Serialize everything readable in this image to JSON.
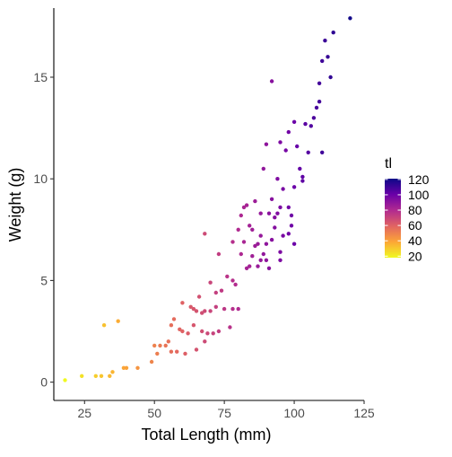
{
  "chart_data": {
    "type": "scatter",
    "xlabel": "Total Length (mm)",
    "ylabel": "Weight (g)",
    "xlim": [
      14,
      125
    ],
    "ylim": [
      -0.9,
      18.4
    ],
    "xticks": [
      25,
      50,
      75,
      100,
      125
    ],
    "yticks": [
      0,
      5,
      10,
      15
    ],
    "grid": false,
    "legend": {
      "title": "tl",
      "position": "right",
      "range": [
        18,
        121
      ],
      "ticks": [
        20,
        40,
        60,
        80,
        100,
        120
      ],
      "colors": [
        "#F0F921",
        "#FCA636",
        "#E16462",
        "#B12A90",
        "#6A00A8",
        "#0D0887"
      ]
    },
    "points": [
      [
        18,
        0.1
      ],
      [
        24,
        0.3
      ],
      [
        29,
        0.3
      ],
      [
        31,
        0.3
      ],
      [
        32,
        2.8
      ],
      [
        34,
        0.3
      ],
      [
        35,
        0.5
      ],
      [
        37,
        3.0
      ],
      [
        39,
        0.7
      ],
      [
        40,
        0.7
      ],
      [
        44,
        0.7
      ],
      [
        49,
        1.0
      ],
      [
        50,
        1.8
      ],
      [
        51,
        1.4
      ],
      [
        52,
        1.8
      ],
      [
        54,
        1.8
      ],
      [
        55,
        2.0
      ],
      [
        56,
        1.5
      ],
      [
        56,
        2.8
      ],
      [
        57,
        3.1
      ],
      [
        58,
        1.5
      ],
      [
        59,
        2.6
      ],
      [
        60,
        2.5
      ],
      [
        60,
        3.9
      ],
      [
        61,
        1.4
      ],
      [
        62,
        2.4
      ],
      [
        63,
        3.7
      ],
      [
        64,
        2.8
      ],
      [
        64,
        3.6
      ],
      [
        65,
        1.6
      ],
      [
        65,
        3.5
      ],
      [
        66,
        4.2
      ],
      [
        67,
        2.5
      ],
      [
        67,
        3.4
      ],
      [
        68,
        2.0
      ],
      [
        68,
        3.5
      ],
      [
        68,
        7.3
      ],
      [
        69,
        2.4
      ],
      [
        70,
        3.5
      ],
      [
        70,
        4.9
      ],
      [
        71,
        2.4
      ],
      [
        72,
        3.7
      ],
      [
        72,
        4.4
      ],
      [
        73,
        2.5
      ],
      [
        73,
        6.3
      ],
      [
        74,
        4.5
      ],
      [
        75,
        3.6
      ],
      [
        76,
        5.2
      ],
      [
        77,
        2.7
      ],
      [
        78,
        3.6
      ],
      [
        78,
        5.0
      ],
      [
        78,
        6.9
      ],
      [
        79,
        4.8
      ],
      [
        80,
        3.6
      ],
      [
        80,
        7.5
      ],
      [
        81,
        8.2
      ],
      [
        81,
        6.3
      ],
      [
        82,
        8.6
      ],
      [
        82,
        6.9
      ],
      [
        83,
        8.7
      ],
      [
        83,
        5.6
      ],
      [
        84,
        7.7
      ],
      [
        84,
        5.7
      ],
      [
        85,
        6.2
      ],
      [
        85,
        7.5
      ],
      [
        86,
        8.9
      ],
      [
        86,
        6.7
      ],
      [
        87,
        6.8
      ],
      [
        87,
        5.7
      ],
      [
        88,
        7.2
      ],
      [
        88,
        8.3
      ],
      [
        88,
        6.0
      ],
      [
        89,
        10.5
      ],
      [
        89,
        6.3
      ],
      [
        90,
        6.8
      ],
      [
        90,
        11.7
      ],
      [
        90,
        6.0
      ],
      [
        91,
        5.6
      ],
      [
        91,
        8.3
      ],
      [
        92,
        9.0
      ],
      [
        92,
        7.0
      ],
      [
        93,
        7.6
      ],
      [
        92,
        14.8
      ],
      [
        93,
        8.1
      ],
      [
        94,
        10.0
      ],
      [
        94,
        8.3
      ],
      [
        95,
        11.8
      ],
      [
        95,
        6.0
      ],
      [
        95,
        8.6
      ],
      [
        95,
        6.4
      ],
      [
        96,
        9.5
      ],
      [
        96,
        7.2
      ],
      [
        97,
        11.4
      ],
      [
        98,
        7.3
      ],
      [
        98,
        8.6
      ],
      [
        98,
        12.3
      ],
      [
        99,
        7.7
      ],
      [
        99,
        8.2
      ],
      [
        100,
        9.6
      ],
      [
        100,
        12.8
      ],
      [
        100,
        6.8
      ],
      [
        101,
        11.6
      ],
      [
        102,
        10.5
      ],
      [
        103,
        10.1
      ],
      [
        103,
        9.9
      ],
      [
        104,
        12.7
      ],
      [
        105,
        11.3
      ],
      [
        106,
        12.6
      ],
      [
        107,
        13.0
      ],
      [
        108,
        13.5
      ],
      [
        109,
        13.8
      ],
      [
        109,
        14.7
      ],
      [
        110,
        11.3
      ],
      [
        110,
        15.8
      ],
      [
        111,
        16.8
      ],
      [
        112,
        16.0
      ],
      [
        113,
        15.0
      ],
      [
        114,
        17.2
      ],
      [
        120,
        17.9
      ]
    ]
  }
}
